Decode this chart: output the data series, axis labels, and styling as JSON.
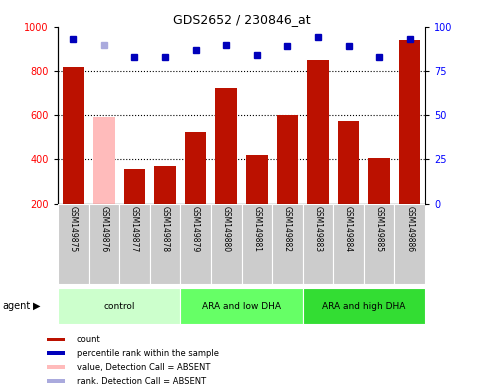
{
  "title": "GDS2652 / 230846_at",
  "samples": [
    "GSM149875",
    "GSM149876",
    "GSM149877",
    "GSM149878",
    "GSM149879",
    "GSM149880",
    "GSM149881",
    "GSM149882",
    "GSM149883",
    "GSM149884",
    "GSM149885",
    "GSM149886"
  ],
  "counts": [
    820,
    590,
    355,
    370,
    525,
    725,
    420,
    600,
    850,
    575,
    405,
    940
  ],
  "percentile_ranks": [
    93,
    90,
    83,
    83,
    87,
    90,
    84,
    89,
    94,
    89,
    83,
    93
  ],
  "absent_value_flags": [
    false,
    true,
    false,
    false,
    false,
    false,
    false,
    false,
    false,
    false,
    false,
    false
  ],
  "absent_rank_flags": [
    false,
    true,
    false,
    false,
    false,
    false,
    false,
    false,
    false,
    false,
    false,
    false
  ],
  "bar_color_normal": "#bb1100",
  "bar_color_absent": "#ffbbbb",
  "dot_color_normal": "#0000bb",
  "dot_color_absent": "#aaaadd",
  "groups": [
    {
      "label": "control",
      "start": 0,
      "end": 3,
      "color": "#ccffcc"
    },
    {
      "label": "ARA and low DHA",
      "start": 4,
      "end": 7,
      "color": "#66ff66"
    },
    {
      "label": "ARA and high DHA",
      "start": 8,
      "end": 11,
      "color": "#33dd33"
    }
  ],
  "ylim_left": [
    200,
    1000
  ],
  "ylim_right": [
    0,
    100
  ],
  "yticks_left": [
    200,
    400,
    600,
    800,
    1000
  ],
  "yticks_right": [
    0,
    25,
    50,
    75,
    100
  ],
  "grid_values": [
    400,
    600,
    800
  ],
  "legend_items": [
    {
      "label": "count",
      "color": "#bb1100"
    },
    {
      "label": "percentile rank within the sample",
      "color": "#0000bb"
    },
    {
      "label": "value, Detection Call = ABSENT",
      "color": "#ffbbbb"
    },
    {
      "label": "rank, Detection Call = ABSENT",
      "color": "#aaaadd"
    }
  ],
  "agent_label": "agent",
  "background_color": "#ffffff"
}
